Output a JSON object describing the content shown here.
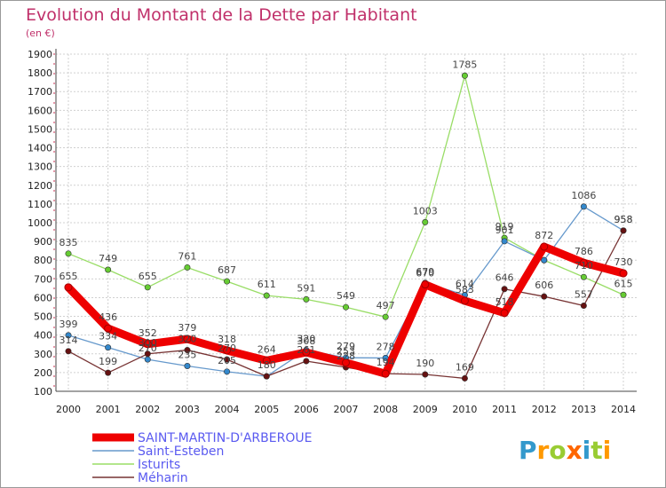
{
  "chart_data": {
    "type": "line",
    "title": "Evolution du Montant de la Dette par Habitant",
    "subtitle": "(en €)",
    "x": [
      "2000",
      "2001",
      "2002",
      "2003",
      "2004",
      "2005",
      "2006",
      "2007",
      "2008",
      "2009",
      "2010",
      "2011",
      "2012",
      "2013",
      "2014"
    ],
    "ylim": [
      100,
      1900
    ],
    "yticks": [
      100,
      200,
      300,
      400,
      500,
      600,
      700,
      800,
      900,
      1000,
      1100,
      1200,
      1300,
      1400,
      1500,
      1600,
      1700,
      1800,
      1900
    ],
    "grid": true,
    "legend_position": "bottom-left",
    "series": [
      {
        "name": "Isturits",
        "color": "#99dd66",
        "marker": "#66cc33",
        "values": [
          835,
          749,
          655,
          761,
          687,
          611,
          591,
          549,
          497,
          1003,
          1785,
          919,
          800,
          710,
          615
        ],
        "labels": [
          "835",
          "749",
          "655",
          "761",
          "687",
          "611",
          "591",
          "549",
          "497",
          "1003",
          "1785",
          "919",
          "",
          "710",
          "615"
        ]
      },
      {
        "name": "Saint-Esteben",
        "color": "#6699cc",
        "marker": "#3388cc",
        "values": [
          399,
          334,
          270,
          235,
          205,
          180,
          320,
          279,
          278,
          679,
          614,
          901,
          800,
          1086,
          958
        ],
        "labels": [
          "399",
          "334",
          "270",
          "235",
          "205",
          "180",
          "320",
          "279",
          "278",
          "679",
          "614",
          "901",
          "",
          "1086",
          "958"
        ]
      },
      {
        "name": "Méharin",
        "color": "#773333",
        "marker": "#661111",
        "values": [
          314,
          199,
          300,
          320,
          270,
          180,
          261,
          228,
          194,
          190,
          169,
          646,
          606,
          557,
          958
        ],
        "labels": [
          "314",
          "199",
          "300",
          "320",
          "270",
          "",
          "261",
          "228",
          "",
          "190",
          "169",
          "646",
          "606",
          "557",
          "958"
        ]
      },
      {
        "name": "SAINT-MARTIN-D'ARBEROUE",
        "color": "#ee0000",
        "marker": "#ee0000",
        "values": [
          655,
          436,
          352,
          379,
          318,
          264,
          308,
          253,
          194,
          670,
          583,
          518,
          872,
          786,
          730
        ],
        "labels": [
          "655",
          "436",
          "352",
          "379",
          "318",
          "264",
          "308",
          "253",
          "194",
          "670",
          "583",
          "518",
          "872",
          "786",
          "730"
        ]
      }
    ]
  },
  "legend": {
    "items": [
      {
        "label": "SAINT-MARTIN-D'ARBEROUE",
        "color": "#ee0000"
      },
      {
        "label": "Saint-Esteben",
        "color": "#6699cc"
      },
      {
        "label": "Isturits",
        "color": "#99dd66"
      },
      {
        "label": "Méharin",
        "color": "#773333"
      }
    ]
  },
  "logo": {
    "text": "Proxiti"
  }
}
